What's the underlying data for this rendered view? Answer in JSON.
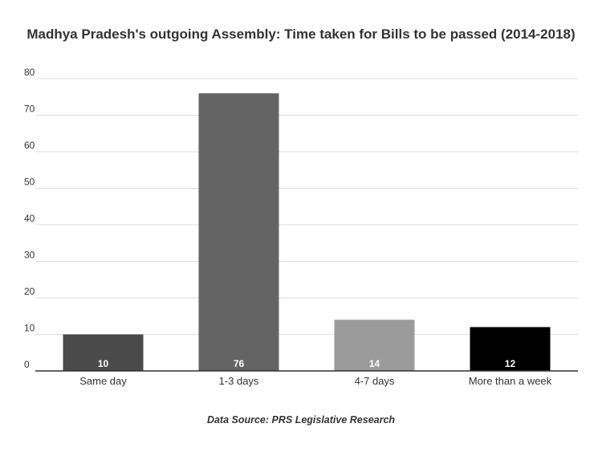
{
  "chart_data": {
    "type": "bar",
    "title": "Madhya Pradesh's outgoing Assembly: Time taken for Bills to be passed (2014-2018)",
    "categories": [
      "Same day",
      "1-3 days",
      "4-7 days",
      "More than a week"
    ],
    "values": [
      10,
      76,
      14,
      12
    ],
    "value_labels": [
      "10",
      "76",
      "14",
      "12"
    ],
    "bar_colors": [
      "#4a4a4a",
      "#646464",
      "#9b9b9b",
      "#000000"
    ],
    "ylim": [
      0,
      80
    ],
    "yticks": [
      0,
      10,
      20,
      30,
      40,
      50,
      60,
      70,
      80
    ],
    "ytick_labels": [
      "0",
      "10",
      "20",
      "30",
      "40",
      "50",
      "60",
      "70",
      "80"
    ],
    "grid": true,
    "legend": "none",
    "source": "Data Source: PRS Legislative Research"
  }
}
